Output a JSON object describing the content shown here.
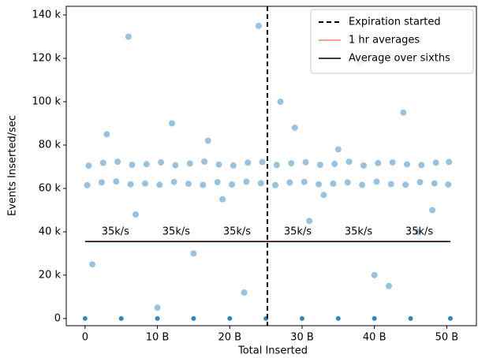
{
  "chart_data": {
    "type": "scatter",
    "xlabel": "Total Inserted",
    "ylabel": "Events Inserted/sec",
    "xlim": [
      -2.6,
      54.1
    ],
    "ylim": [
      -3300,
      144000
    ],
    "xticks": [
      {
        "value": 0,
        "label": "0"
      },
      {
        "value": 10,
        "label": "10 B"
      },
      {
        "value": 20,
        "label": "20 B"
      },
      {
        "value": 30,
        "label": "30 B"
      },
      {
        "value": 40,
        "label": "40 B"
      },
      {
        "value": 50,
        "label": "50 B"
      }
    ],
    "yticks": [
      0,
      {
        "value": 20000,
        "label": "20 k"
      },
      {
        "value": 40000,
        "label": "40 k"
      },
      {
        "value": 60000,
        "label": "60 k"
      },
      {
        "value": 80000,
        "label": "80 k"
      },
      {
        "value": 100000,
        "label": "100 k"
      },
      {
        "value": 120000,
        "label": "120 k"
      },
      {
        "value": 140000,
        "label": "140 k"
      }
    ],
    "scatter": {
      "color": "#1f77b4",
      "x": [
        0.5,
        2.5,
        4.5,
        6.5,
        8.5,
        10.5,
        12.5,
        14.5,
        16.5,
        18.5,
        20.5,
        22.5,
        24.5,
        26.5,
        28.5,
        30.5,
        32.5,
        34.5,
        36.5,
        38.5,
        40.5,
        42.5,
        44.5,
        46.5,
        48.5,
        50.3,
        0.3,
        2.3,
        4.3,
        6.3,
        8.3,
        10.3,
        12.3,
        14.3,
        16.3,
        18.3,
        20.3,
        22.3,
        24.3,
        26.3,
        28.3,
        30.3,
        32.3,
        34.3,
        36.3,
        38.3,
        40.3,
        42.3,
        44.3,
        46.3,
        48.3,
        50.2,
        3,
        7,
        12,
        15,
        19,
        22,
        27,
        31,
        35,
        40,
        44,
        48,
        6,
        24,
        38,
        10,
        33,
        1,
        17,
        46,
        29,
        42,
        0,
        5,
        10,
        15,
        20,
        25,
        30,
        35,
        40,
        45,
        50.5
      ],
      "values": [
        70500,
        71800,
        72300,
        70900,
        71200,
        72000,
        70700,
        71500,
        72400,
        71000,
        70600,
        71900,
        72200,
        70800,
        71600,
        72100,
        70900,
        71300,
        72300,
        70600,
        71700,
        72000,
        71100,
        70800,
        71900,
        72200,
        61500,
        62800,
        63200,
        61900,
        62300,
        61700,
        63000,
        62100,
        61600,
        62900,
        61800,
        63100,
        62400,
        61500,
        62700,
        63000,
        61900,
        62200,
        62800,
        61600,
        63100,
        62000,
        61700,
        62900,
        62300,
        61800,
        85000,
        48000,
        90000,
        30000,
        55000,
        12000,
        100000,
        45000,
        78000,
        20000,
        95000,
        50000,
        130000,
        135000,
        118000,
        5000,
        57000,
        25000,
        82000,
        40000,
        88000,
        15000,
        0,
        0,
        0,
        0,
        0,
        0,
        0,
        0,
        0,
        0,
        0
      ]
    },
    "vlines": [
      {
        "name": "Expiration started",
        "x": 25.2,
        "color": "#000000",
        "dash": "6 4"
      }
    ],
    "series": [
      {
        "name": "1 hr averages",
        "color": "#f08080",
        "x": [
          0,
          50.5
        ],
        "values": [
          35600,
          35600
        ]
      },
      {
        "name": "Average over sixths",
        "color": "#000000",
        "x": [
          0,
          8.4,
          16.8,
          25.2,
          33.6,
          42.1,
          50.5
        ],
        "values": [
          35500,
          35500,
          35500,
          35500,
          35500,
          35500,
          35500
        ]
      }
    ],
    "annotations": [
      {
        "text": "35k/s",
        "x": 4.2,
        "y": 40000
      },
      {
        "text": "35k/s",
        "x": 12.6,
        "y": 40000
      },
      {
        "text": "35k/s",
        "x": 21.0,
        "y": 40000
      },
      {
        "text": "35k/s",
        "x": 29.4,
        "y": 40000
      },
      {
        "text": "35k/s",
        "x": 37.8,
        "y": 40000
      },
      {
        "text": "35k/s",
        "x": 46.2,
        "y": 40000
      }
    ],
    "legend": "upper right"
  }
}
